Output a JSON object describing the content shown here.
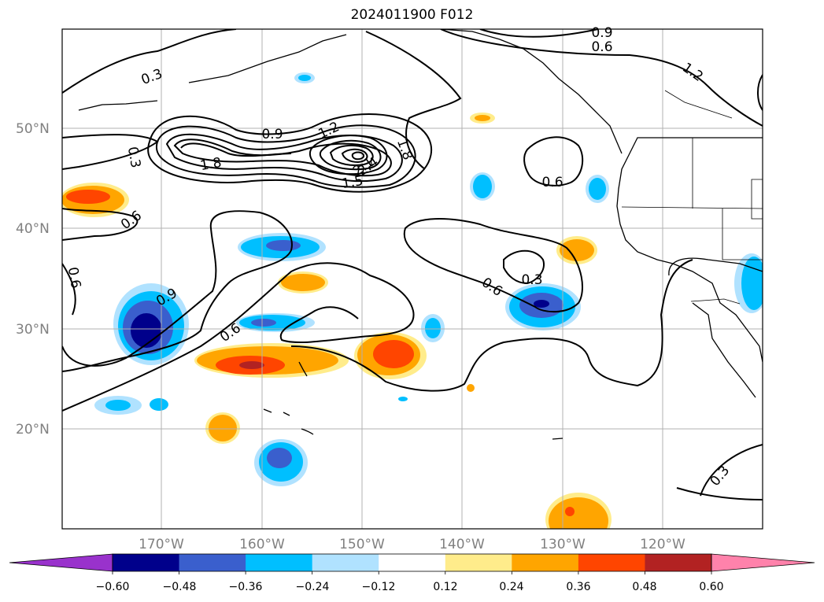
{
  "title": "2024011900 F012",
  "map": {
    "lon_ticks": [
      "170°W",
      "160°W",
      "150°W",
      "140°W",
      "130°W",
      "120°W"
    ],
    "lat_ticks": [
      "50°N",
      "40°N",
      "30°N",
      "20°N"
    ],
    "grid": true
  },
  "contour_labels": [
    "0.3",
    "0.3",
    "0.9",
    "1.2",
    "1.8",
    "1.5",
    "2.1",
    "2.4",
    "1.8",
    "0.6",
    "0.6",
    "0.9",
    "0.6",
    "0.6",
    "0.3",
    "0.6",
    "1.2",
    "0.9",
    "0.6",
    "0.3"
  ],
  "colorbar": {
    "tick_labels": [
      "−0.60",
      "−0.48",
      "−0.36",
      "−0.24",
      "−0.12",
      "0.12",
      "0.24",
      "0.36",
      "0.48",
      "0.60"
    ],
    "colors": [
      "#9932cc",
      "#00008b",
      "#3a5fcd",
      "#00bfff",
      "#b0e2ff",
      "#ffffff",
      "#ffec8b",
      "#ffa500",
      "#ff4500",
      "#b22222",
      "#ff82ab"
    ]
  }
}
